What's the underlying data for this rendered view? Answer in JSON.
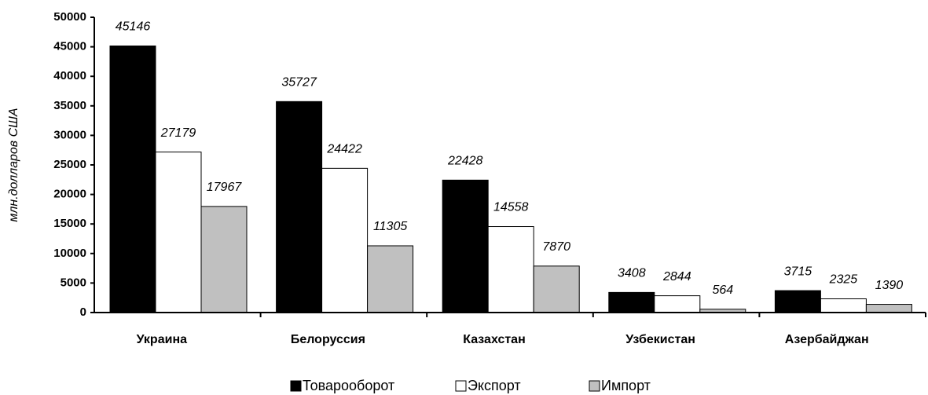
{
  "chart_data": {
    "type": "bar",
    "y_label": "млн.долларов США",
    "categories": [
      "Украина",
      "Белоруссия",
      "Казахстан",
      "Узбекистан",
      "Азербайджан"
    ],
    "series": [
      {
        "name": "Товарооборот",
        "color": "#000000",
        "values": [
          45146,
          35727,
          22428,
          3408,
          3715
        ]
      },
      {
        "name": "Экспорт",
        "color": "#ffffff",
        "values": [
          27179,
          24422,
          14558,
          2844,
          2325
        ]
      },
      {
        "name": "Импорт",
        "color": "#c0c0c0",
        "values": [
          17967,
          11305,
          7870,
          564,
          1390
        ]
      }
    ],
    "ylim": [
      0,
      50000
    ],
    "yticks": [
      0,
      5000,
      10000,
      15000,
      20000,
      25000,
      30000,
      35000,
      40000,
      45000,
      50000
    ],
    "legend": "bottom"
  }
}
